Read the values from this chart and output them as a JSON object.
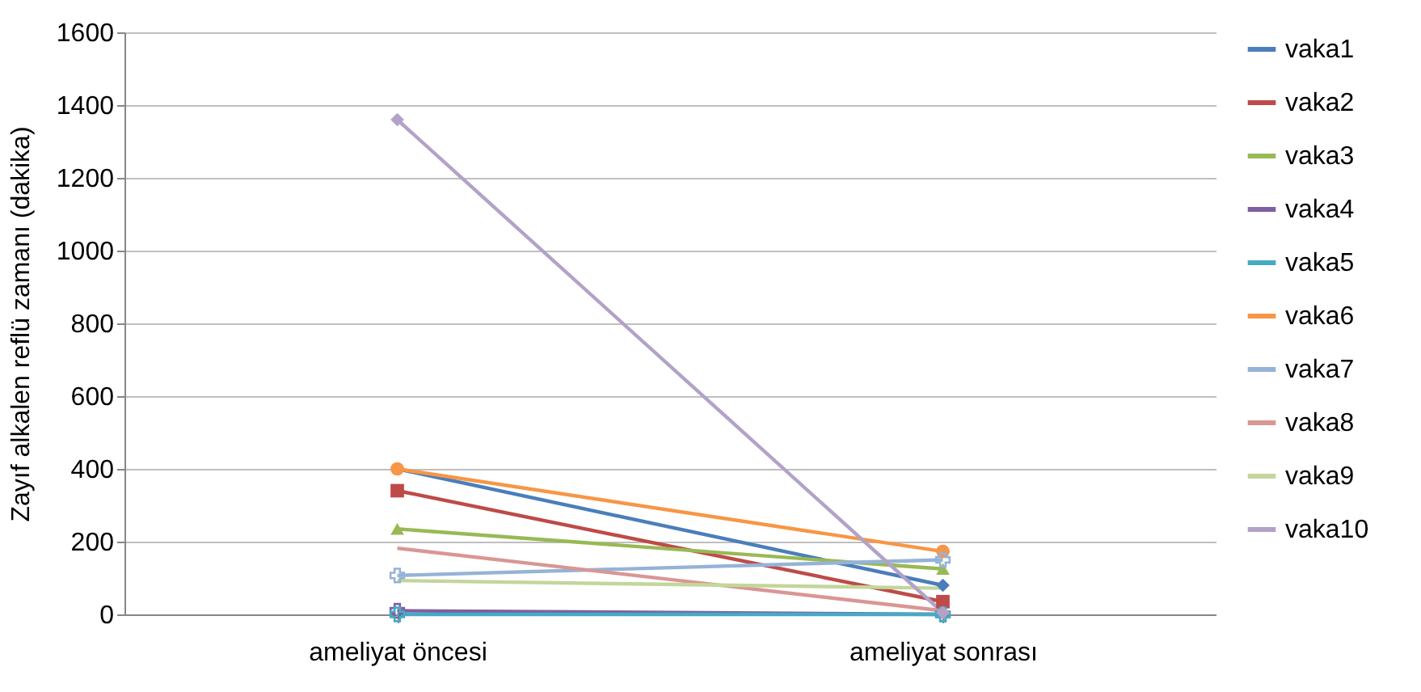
{
  "chart_data": {
    "type": "line",
    "ylabel": "Zayıf alkalen reflü zamanı (dakika)",
    "categories": [
      "ameliyat öncesi",
      "ameliyat sonrası"
    ],
    "ylim": [
      0,
      1600
    ],
    "yticks": [
      0,
      200,
      400,
      600,
      800,
      1000,
      1200,
      1400,
      1600
    ],
    "grid": "y",
    "legend": "right",
    "series": [
      {
        "name": "vaka1",
        "color": "#4a7ebb",
        "marker": "diamond",
        "values": [
          400,
          80
        ]
      },
      {
        "name": "vaka2",
        "color": "#be4b48",
        "marker": "square",
        "values": [
          340,
          35
        ]
      },
      {
        "name": "vaka3",
        "color": "#98b954",
        "marker": "triangle",
        "values": [
          235,
          125
        ]
      },
      {
        "name": "vaka4",
        "color": "#7d60a0",
        "marker": "cross",
        "values": [
          10,
          0
        ]
      },
      {
        "name": "vaka5",
        "color": "#46aac5",
        "marker": "cross",
        "values": [
          0,
          0
        ]
      },
      {
        "name": "vaka6",
        "color": "#f79646",
        "marker": "circle",
        "values": [
          400,
          173
        ]
      },
      {
        "name": "vaka7",
        "color": "#95b3d7",
        "marker": "cross",
        "values": [
          107,
          150
        ]
      },
      {
        "name": "vaka8",
        "color": "#d99694",
        "marker": "none",
        "values": [
          182,
          10
        ]
      },
      {
        "name": "vaka9",
        "color": "#c3d69b",
        "marker": "none",
        "values": [
          93,
          72
        ]
      },
      {
        "name": "vaka10",
        "color": "#b3a2c7",
        "marker": "diamond",
        "values": [
          1360,
          5
        ]
      }
    ]
  }
}
